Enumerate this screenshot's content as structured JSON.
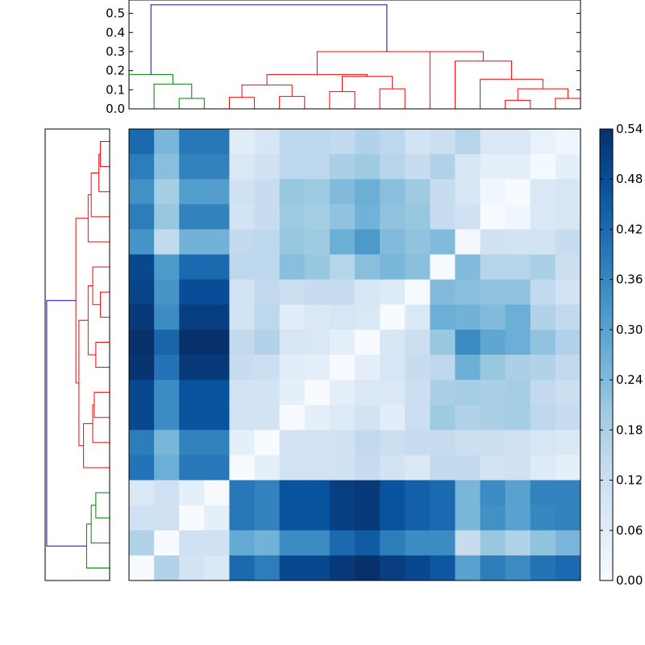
{
  "chart_data": {
    "type": "heatmap",
    "title": "",
    "xlabel": "",
    "ylabel": "",
    "colormap": "Blues",
    "colors": {
      "linkage_root": "#0000ff",
      "cluster_a": "#ff0000",
      "cluster_b": "#008000"
    },
    "colorbar": {
      "range": [
        0.0,
        0.54
      ],
      "ticks": [
        "0.00",
        "0.06",
        "0.12",
        "0.18",
        "0.24",
        "0.30",
        "0.36",
        "0.42",
        "0.48",
        "0.54"
      ]
    },
    "top_dendrogram": {
      "yticks": [
        "0.0",
        "0.1",
        "0.2",
        "0.3",
        "0.4",
        "0.5"
      ],
      "ylim": [
        0.0,
        0.57
      ],
      "links": [
        {
          "color": "#008000",
          "x": [
            1.5,
            1.5,
            2.5,
            2.5
          ],
          "y": [
            0.0,
            0.055,
            0.055,
            0.0
          ]
        },
        {
          "color": "#008000",
          "x": [
            0.5,
            0.5,
            2.0,
            2.0
          ],
          "y": [
            0.0,
            0.13,
            0.13,
            0.055
          ]
        },
        {
          "color": "#008000",
          "x": [
            -0.5,
            -0.5,
            1.25,
            1.25
          ],
          "y": [
            0.0,
            0.18,
            0.18,
            0.13
          ]
        },
        {
          "color": "#ff0000",
          "x": [
            3.5,
            3.5,
            4.5,
            4.5
          ],
          "y": [
            0.0,
            0.06,
            0.06,
            0.0
          ]
        },
        {
          "color": "#ff0000",
          "x": [
            5.5,
            5.5,
            6.5,
            6.5
          ],
          "y": [
            0.0,
            0.065,
            0.065,
            0.0
          ]
        },
        {
          "color": "#ff0000",
          "x": [
            4.0,
            4.0,
            6.0,
            6.0
          ],
          "y": [
            0.06,
            0.125,
            0.125,
            0.065
          ]
        },
        {
          "color": "#ff0000",
          "x": [
            7.5,
            7.5,
            8.5,
            8.5
          ],
          "y": [
            0.0,
            0.09,
            0.09,
            0.0
          ]
        },
        {
          "color": "#ff0000",
          "x": [
            9.5,
            9.5,
            10.5,
            10.5
          ],
          "y": [
            0.0,
            0.105,
            0.105,
            0.0
          ]
        },
        {
          "color": "#ff0000",
          "x": [
            8.0,
            8.0,
            10.0,
            10.0
          ],
          "y": [
            0.09,
            0.17,
            0.17,
            0.105
          ]
        },
        {
          "color": "#ff0000",
          "x": [
            5.0,
            5.0,
            9.0,
            9.0
          ],
          "y": [
            0.125,
            0.18,
            0.18,
            0.17
          ]
        },
        {
          "color": "#ff0000",
          "x": [
            14.5,
            14.5,
            15.5,
            15.5
          ],
          "y": [
            0.0,
            0.045,
            0.045,
            0.0
          ]
        },
        {
          "color": "#ff0000",
          "x": [
            16.5,
            16.5,
            17.5,
            17.5
          ],
          "y": [
            0.0,
            0.055,
            0.055,
            0.0
          ]
        },
        {
          "color": "#ff0000",
          "x": [
            15.0,
            15.0,
            17.0,
            17.0
          ],
          "y": [
            0.045,
            0.105,
            0.105,
            0.055
          ]
        },
        {
          "color": "#ff0000",
          "x": [
            13.5,
            13.5,
            16.0,
            16.0
          ],
          "y": [
            0.0,
            0.155,
            0.155,
            0.105
          ]
        },
        {
          "color": "#ff0000",
          "x": [
            12.5,
            12.5,
            14.75,
            14.75
          ],
          "y": [
            0.0,
            0.25,
            0.25,
            0.155
          ]
        },
        {
          "color": "#ff0000",
          "x": [
            11.5,
            11.5,
            13.625,
            13.625
          ],
          "y": [
            0.0,
            0.3,
            0.3,
            0.25
          ]
        },
        {
          "color": "#ff0000",
          "x": [
            7.0,
            7.0,
            12.5625,
            12.5625
          ],
          "y": [
            0.18,
            0.3,
            0.3,
            0.3
          ]
        },
        {
          "color": "#0000ff",
          "x": [
            0.375,
            0.375,
            9.78,
            9.78
          ],
          "y": [
            0.18,
            0.545,
            0.545,
            0.3
          ]
        }
      ]
    },
    "left_dendrogram": {
      "links": [
        {
          "color": "#ff0000",
          "x": [
            0.0,
            0.03,
            0.03,
            0.0
          ],
          "y": [
            0.5,
            0.5,
            1.5,
            1.5
          ]
        },
        {
          "color": "#ff0000",
          "x": [
            0.0,
            0.035,
            0.035,
            0.03
          ],
          "y": [
            2.5,
            2.5,
            1.0,
            1.0
          ]
        },
        {
          "color": "#ff0000",
          "x": [
            0.0,
            0.06,
            0.06,
            0.035
          ],
          "y": [
            3.5,
            3.5,
            1.75,
            1.75
          ]
        },
        {
          "color": "#ff0000",
          "x": [
            0.0,
            0.07,
            0.07,
            0.06
          ],
          "y": [
            4.5,
            4.5,
            2.625,
            2.625
          ]
        },
        {
          "color": "#ff0000",
          "x": [
            0.0,
            0.03,
            0.03,
            0.0
          ],
          "y": [
            6.5,
            6.5,
            7.5,
            7.5
          ]
        },
        {
          "color": "#ff0000",
          "x": [
            0.0,
            0.055,
            0.055,
            0.03
          ],
          "y": [
            5.5,
            5.5,
            7.0,
            7.0
          ]
        },
        {
          "color": "#ff0000",
          "x": [
            0.0,
            0.045,
            0.045,
            0.0
          ],
          "y": [
            8.5,
            8.5,
            9.5,
            9.5
          ]
        },
        {
          "color": "#ff0000",
          "x": [
            0.055,
            0.07,
            0.07,
            0.045
          ],
          "y": [
            6.25,
            6.25,
            9.0,
            9.0
          ]
        },
        {
          "color": "#ff0000",
          "x": [
            0.0,
            0.05,
            0.05,
            0.0
          ],
          "y": [
            10.5,
            10.5,
            11.5,
            11.5
          ]
        },
        {
          "color": "#ff0000",
          "x": [
            0.0,
            0.055,
            0.055,
            0.05
          ],
          "y": [
            12.5,
            12.5,
            11.0,
            11.0
          ]
        },
        {
          "color": "#ff0000",
          "x": [
            0.0,
            0.085,
            0.085,
            0.055
          ],
          "y": [
            13.5,
            13.5,
            11.75,
            11.75
          ]
        },
        {
          "color": "#ff0000",
          "x": [
            0.07,
            0.1,
            0.1,
            0.085
          ],
          "y": [
            7.625,
            7.625,
            12.625,
            12.625
          ]
        },
        {
          "color": "#ff0000",
          "x": [
            0.07,
            0.11,
            0.11,
            0.1
          ],
          "y": [
            3.56,
            3.56,
            10.125,
            10.125
          ]
        },
        {
          "color": "#008000",
          "x": [
            0.0,
            0.045,
            0.045,
            0.0
          ],
          "y": [
            14.5,
            14.5,
            15.5,
            15.5
          ]
        },
        {
          "color": "#008000",
          "x": [
            0.0,
            0.06,
            0.06,
            0.045
          ],
          "y": [
            16.5,
            16.5,
            15.0,
            15.0
          ]
        },
        {
          "color": "#008000",
          "x": [
            0.0,
            0.075,
            0.075,
            0.06
          ],
          "y": [
            17.5,
            17.5,
            15.75,
            15.75
          ]
        },
        {
          "color": "#0000ff",
          "x": [
            0.11,
            0.205,
            0.205,
            0.075
          ],
          "y": [
            6.84,
            6.84,
            16.625,
            16.625
          ]
        }
      ]
    },
    "matrix": [
      [
        0.42,
        0.25,
        0.39,
        0.39,
        0.06,
        0.09,
        0.15,
        0.15,
        0.14,
        0.17,
        0.15,
        0.1,
        0.12,
        0.16,
        0.08,
        0.08,
        0.04,
        0.02
      ],
      [
        0.38,
        0.23,
        0.37,
        0.37,
        0.08,
        0.11,
        0.15,
        0.15,
        0.18,
        0.2,
        0.16,
        0.13,
        0.17,
        0.09,
        0.05,
        0.05,
        0.01,
        0.05
      ],
      [
        0.34,
        0.19,
        0.31,
        0.31,
        0.11,
        0.13,
        0.21,
        0.2,
        0.24,
        0.27,
        0.23,
        0.2,
        0.13,
        0.09,
        0.02,
        0.0,
        0.08,
        0.09
      ],
      [
        0.38,
        0.21,
        0.37,
        0.37,
        0.1,
        0.13,
        0.2,
        0.19,
        0.22,
        0.26,
        0.22,
        0.21,
        0.13,
        0.11,
        0.0,
        0.02,
        0.08,
        0.09
      ],
      [
        0.33,
        0.14,
        0.26,
        0.26,
        0.14,
        0.15,
        0.21,
        0.2,
        0.27,
        0.32,
        0.24,
        0.22,
        0.24,
        0.01,
        0.11,
        0.1,
        0.1,
        0.13
      ],
      [
        0.49,
        0.32,
        0.42,
        0.42,
        0.15,
        0.15,
        0.23,
        0.21,
        0.16,
        0.23,
        0.25,
        0.23,
        0.0,
        0.24,
        0.16,
        0.16,
        0.18,
        0.12
      ],
      [
        0.5,
        0.33,
        0.48,
        0.48,
        0.1,
        0.14,
        0.12,
        0.13,
        0.13,
        0.09,
        0.07,
        0.0,
        0.24,
        0.23,
        0.22,
        0.22,
        0.14,
        0.1
      ],
      [
        0.52,
        0.35,
        0.51,
        0.51,
        0.1,
        0.15,
        0.06,
        0.08,
        0.09,
        0.08,
        0.0,
        0.08,
        0.27,
        0.26,
        0.24,
        0.27,
        0.17,
        0.14
      ],
      [
        0.54,
        0.43,
        0.54,
        0.54,
        0.14,
        0.17,
        0.09,
        0.08,
        0.05,
        0.0,
        0.09,
        0.12,
        0.21,
        0.35,
        0.29,
        0.27,
        0.22,
        0.17
      ],
      [
        0.53,
        0.4,
        0.52,
        0.52,
        0.13,
        0.12,
        0.06,
        0.05,
        0.0,
        0.05,
        0.09,
        0.13,
        0.15,
        0.27,
        0.21,
        0.18,
        0.17,
        0.14
      ],
      [
        0.49,
        0.35,
        0.47,
        0.47,
        0.1,
        0.1,
        0.05,
        0.0,
        0.05,
        0.08,
        0.08,
        0.12,
        0.18,
        0.19,
        0.18,
        0.19,
        0.14,
        0.12
      ],
      [
        0.49,
        0.35,
        0.47,
        0.47,
        0.1,
        0.1,
        0.0,
        0.05,
        0.07,
        0.1,
        0.06,
        0.12,
        0.2,
        0.17,
        0.18,
        0.19,
        0.15,
        0.13
      ],
      [
        0.38,
        0.25,
        0.37,
        0.37,
        0.05,
        0.0,
        0.1,
        0.1,
        0.11,
        0.14,
        0.12,
        0.13,
        0.13,
        0.12,
        0.12,
        0.11,
        0.09,
        0.08
      ],
      [
        0.4,
        0.27,
        0.39,
        0.39,
        0.0,
        0.05,
        0.1,
        0.1,
        0.11,
        0.13,
        0.1,
        0.08,
        0.14,
        0.14,
        0.1,
        0.11,
        0.07,
        0.05
      ],
      [
        0.08,
        0.11,
        0.05,
        0.0,
        0.39,
        0.37,
        0.47,
        0.47,
        0.51,
        0.52,
        0.47,
        0.44,
        0.42,
        0.25,
        0.35,
        0.3,
        0.37,
        0.37
      ],
      [
        0.11,
        0.11,
        0.0,
        0.05,
        0.39,
        0.37,
        0.47,
        0.47,
        0.51,
        0.52,
        0.47,
        0.44,
        0.42,
        0.25,
        0.34,
        0.3,
        0.36,
        0.37
      ],
      [
        0.17,
        0.0,
        0.11,
        0.11,
        0.28,
        0.26,
        0.35,
        0.35,
        0.42,
        0.45,
        0.38,
        0.35,
        0.35,
        0.13,
        0.21,
        0.17,
        0.22,
        0.25
      ],
      [
        0.0,
        0.17,
        0.1,
        0.08,
        0.42,
        0.38,
        0.49,
        0.49,
        0.52,
        0.54,
        0.51,
        0.49,
        0.46,
        0.3,
        0.38,
        0.35,
        0.4,
        0.42
      ]
    ]
  }
}
